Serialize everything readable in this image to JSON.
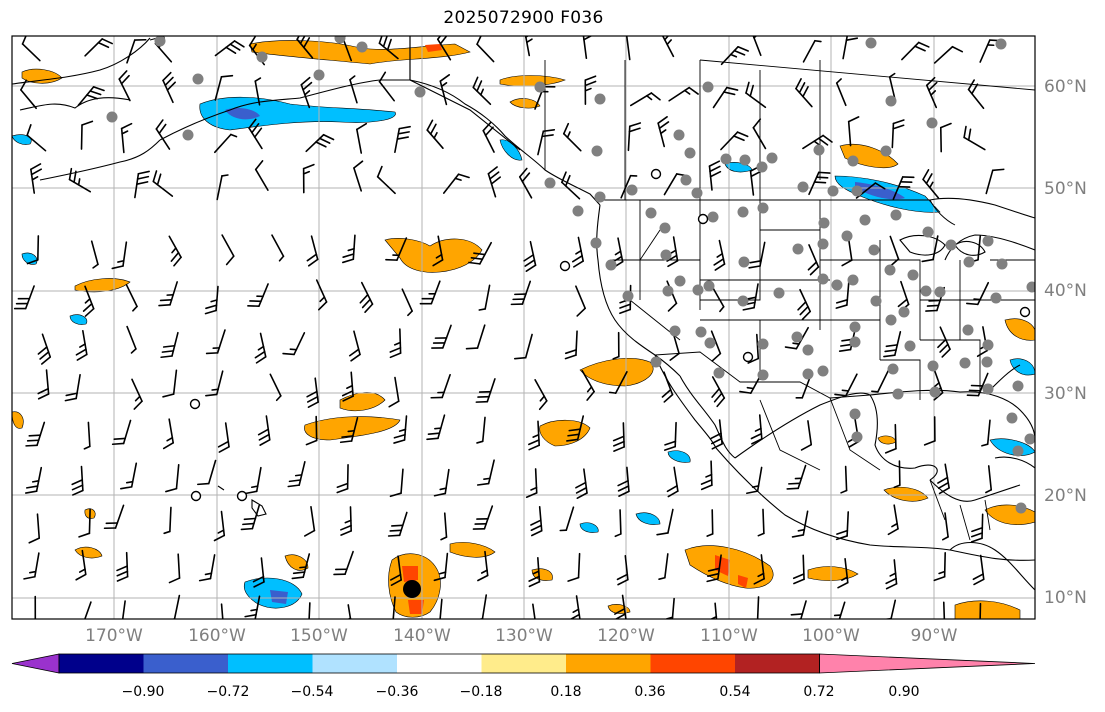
{
  "title": "2025072900 F036",
  "lat_labels": [
    "60°N",
    "50°N",
    "40°N",
    "30°N",
    "20°N",
    "10°N"
  ],
  "lon_labels": [
    "170°W",
    "160°W",
    "150°W",
    "140°W",
    "130°W",
    "120°W",
    "110°W",
    "100°W",
    "90°W"
  ],
  "colorbar": {
    "tick_labels": [
      "−0.90",
      "−0.72",
      "−0.54",
      "−0.36",
      "−0.18",
      "0.18",
      "0.36",
      "0.54",
      "0.72",
      "0.90"
    ],
    "colors": [
      "#9a32cd",
      "#00008b",
      "#3a5fcd",
      "#00bfff",
      "#b0e2ff",
      "#ffffff",
      "#ffec8b",
      "#ffa500",
      "#ff4500",
      "#b22222",
      "#ff82ab"
    ]
  },
  "colors": {
    "gridline": "#b3b3b3",
    "coastline": "#000000",
    "station_dot": "#808080",
    "axis_label": "#7f7f7f"
  }
}
